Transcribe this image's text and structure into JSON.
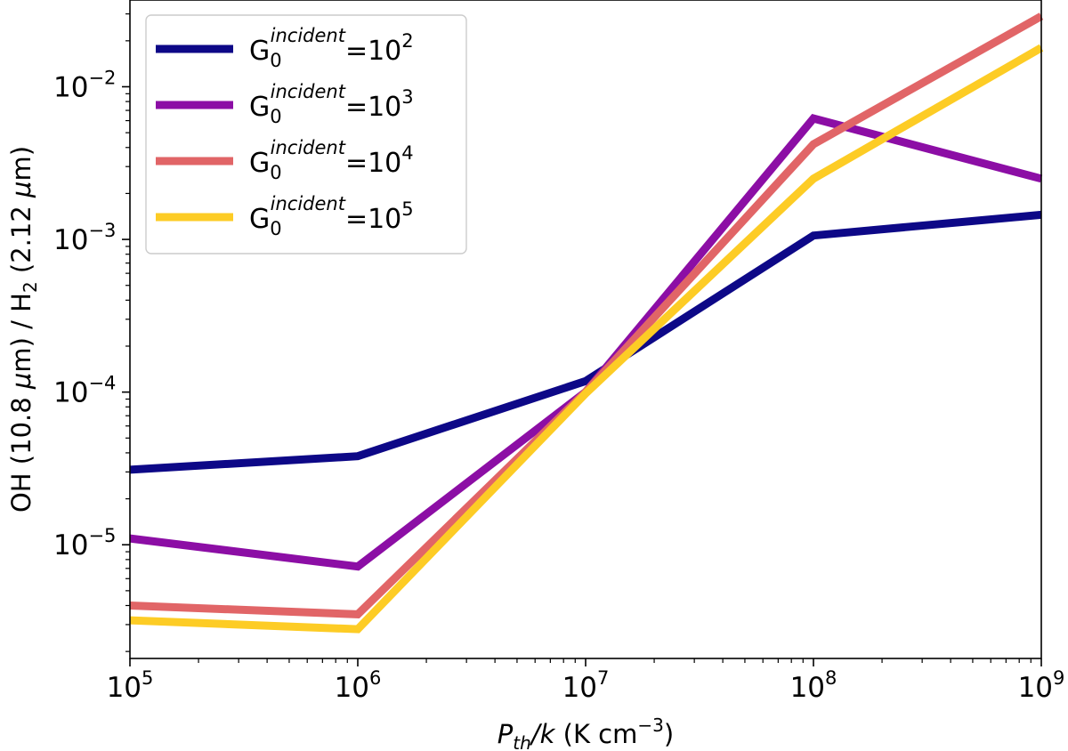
{
  "chart_data": {
    "type": "line",
    "x_scale": "log",
    "y_scale": "log",
    "x": [
      100000,
      1000000,
      10000000,
      100000000,
      1000000000
    ],
    "xlim": [
      100000,
      1000000000
    ],
    "ylim": [
      1.8e-06,
      0.037
    ],
    "x_ticks": [
      {
        "value": 100000,
        "base": "10",
        "exp": "5"
      },
      {
        "value": 1000000,
        "base": "10",
        "exp": "6"
      },
      {
        "value": 10000000,
        "base": "10",
        "exp": "7"
      },
      {
        "value": 100000000,
        "base": "10",
        "exp": "8"
      },
      {
        "value": 1000000000,
        "base": "10",
        "exp": "9"
      }
    ],
    "y_ticks": [
      {
        "value": 1e-05,
        "base": "10",
        "exp": "−5"
      },
      {
        "value": 0.0001,
        "base": "10",
        "exp": "−4"
      },
      {
        "value": 0.001,
        "base": "10",
        "exp": "−3"
      },
      {
        "value": 0.01,
        "base": "10",
        "exp": "−2"
      }
    ],
    "xlabel": {
      "main": "P",
      "sub": "th",
      "rest": "/k",
      "units_prefix": " (K cm",
      "units_exp": "−3",
      "units_suffix": ")"
    },
    "ylabel": {
      "part1": "OH (10.8 ",
      "mu1": "μ",
      "part2": "m) / H",
      "sub": "2",
      "part3": " (2.12 ",
      "mu2": "μ",
      "part4": "m)"
    },
    "legend_position": "top-left",
    "series": [
      {
        "name": "G0 incident = 10^2",
        "legend": {
          "G": "G",
          "sub": "0",
          "sup": "incident",
          "eq": "=10",
          "exp": "2"
        },
        "color": "#0d0887",
        "values": [
          3.1e-05,
          3.8e-05,
          0.000118,
          0.00106,
          0.00145
        ]
      },
      {
        "name": "G0 incident = 10^3",
        "legend": {
          "G": "G",
          "sub": "0",
          "sup": "incident",
          "eq": "=10",
          "exp": "3"
        },
        "color": "#8c0ea5",
        "values": [
          1.1e-05,
          7.2e-06,
          0.0001,
          0.0062,
          0.0025
        ]
      },
      {
        "name": "G0 incident = 10^4",
        "legend": {
          "G": "G",
          "sub": "0",
          "sup": "incident",
          "eq": "=10",
          "exp": "4"
        },
        "color": "#e16567",
        "values": [
          4e-06,
          3.5e-06,
          0.0001,
          0.0042,
          0.029
        ]
      },
      {
        "name": "G0 incident = 10^5",
        "legend": {
          "G": "G",
          "sub": "0",
          "sup": "incident",
          "eq": "=10",
          "exp": "5"
        },
        "color": "#fdcc25",
        "values": [
          3.2e-06,
          2.8e-06,
          9.8e-05,
          0.0025,
          0.018
        ]
      }
    ]
  }
}
